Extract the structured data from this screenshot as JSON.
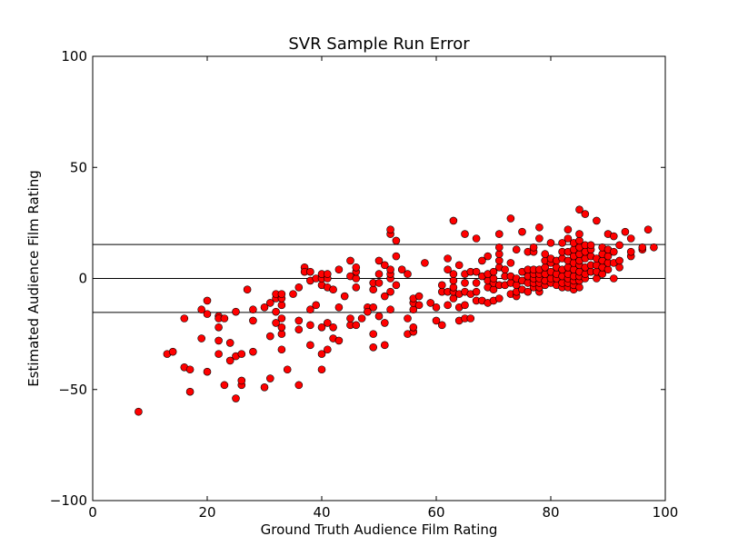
{
  "chart_data": {
    "type": "scatter",
    "title": "SVR Sample Run Error",
    "xlabel": "Ground Truth Audience Film Rating",
    "ylabel": "Estimated Audience Film Rating",
    "xlim": [
      0,
      100
    ],
    "ylim": [
      -100,
      100
    ],
    "xticks": [
      0,
      20,
      40,
      60,
      80,
      100
    ],
    "yticks": [
      -100,
      -50,
      0,
      50,
      100
    ],
    "grid": false,
    "legend": "none",
    "marker_color": "#ff0000",
    "marker_edge_color": "#000000",
    "hlines": [
      15.3,
      0,
      -15.3
    ],
    "points": [
      [
        8,
        -60
      ],
      [
        13,
        -34
      ],
      [
        14,
        -33
      ],
      [
        16,
        -40
      ],
      [
        16,
        -18
      ],
      [
        17,
        -51
      ],
      [
        17,
        -41
      ],
      [
        19,
        -27
      ],
      [
        19,
        -14
      ],
      [
        20,
        -42
      ],
      [
        20,
        -16
      ],
      [
        20,
        -10
      ],
      [
        22,
        -34
      ],
      [
        22,
        -28
      ],
      [
        22,
        -22
      ],
      [
        22,
        -17
      ],
      [
        22,
        -18
      ],
      [
        23,
        -48
      ],
      [
        23,
        -18
      ],
      [
        24,
        -37
      ],
      [
        24,
        -29
      ],
      [
        25,
        -54
      ],
      [
        25,
        -35
      ],
      [
        25,
        -15
      ],
      [
        26,
        -48
      ],
      [
        26,
        -46
      ],
      [
        26,
        -34
      ],
      [
        27,
        -5
      ],
      [
        28,
        -33
      ],
      [
        28,
        -19
      ],
      [
        28,
        -14
      ],
      [
        30,
        -49
      ],
      [
        30,
        -13
      ],
      [
        31,
        -45
      ],
      [
        31,
        -26
      ],
      [
        31,
        -11
      ],
      [
        32,
        -20
      ],
      [
        32,
        -15
      ],
      [
        32,
        -9
      ],
      [
        32,
        -7
      ],
      [
        33,
        -32
      ],
      [
        33,
        -25
      ],
      [
        33,
        -22
      ],
      [
        33,
        -18
      ],
      [
        33,
        -12
      ],
      [
        33,
        -9
      ],
      [
        33,
        -7
      ],
      [
        34,
        -41
      ],
      [
        35,
        -7
      ],
      [
        36,
        -48
      ],
      [
        36,
        -23
      ],
      [
        36,
        -19
      ],
      [
        36,
        -4
      ],
      [
        37,
        5
      ],
      [
        37,
        3
      ],
      [
        38,
        -30
      ],
      [
        38,
        -21
      ],
      [
        38,
        -14
      ],
      [
        38,
        -1
      ],
      [
        38,
        3
      ],
      [
        39,
        -12
      ],
      [
        39,
        0
      ],
      [
        40,
        -41
      ],
      [
        40,
        -34
      ],
      [
        40,
        -22
      ],
      [
        40,
        -3
      ],
      [
        40,
        0
      ],
      [
        40,
        2
      ],
      [
        41,
        -32
      ],
      [
        41,
        -20
      ],
      [
        41,
        -4
      ],
      [
        41,
        0
      ],
      [
        41,
        2
      ],
      [
        42,
        -27
      ],
      [
        42,
        -22
      ],
      [
        42,
        -5
      ],
      [
        43,
        -28
      ],
      [
        43,
        -13
      ],
      [
        43,
        4
      ],
      [
        44,
        -8
      ],
      [
        45,
        -21
      ],
      [
        45,
        -18
      ],
      [
        45,
        1
      ],
      [
        45,
        8
      ],
      [
        46,
        -21
      ],
      [
        46,
        -4
      ],
      [
        46,
        0
      ],
      [
        46,
        3
      ],
      [
        46,
        5
      ],
      [
        47,
        -18
      ],
      [
        48,
        -13
      ],
      [
        48,
        -15
      ],
      [
        49,
        -31
      ],
      [
        49,
        -25
      ],
      [
        49,
        -13
      ],
      [
        49,
        -5
      ],
      [
        49,
        -2
      ],
      [
        50,
        -17
      ],
      [
        50,
        -2
      ],
      [
        50,
        2
      ],
      [
        50,
        8
      ],
      [
        51,
        -30
      ],
      [
        51,
        -20
      ],
      [
        51,
        -8
      ],
      [
        51,
        6
      ],
      [
        52,
        -14
      ],
      [
        52,
        -6
      ],
      [
        52,
        0
      ],
      [
        52,
        2
      ],
      [
        52,
        4
      ],
      [
        52,
        20
      ],
      [
        52,
        22
      ],
      [
        53,
        -3
      ],
      [
        53,
        10
      ],
      [
        53,
        17
      ],
      [
        54,
        4
      ],
      [
        55,
        -25
      ],
      [
        55,
        -18
      ],
      [
        55,
        2
      ],
      [
        56,
        -24
      ],
      [
        56,
        -22
      ],
      [
        56,
        -14
      ],
      [
        56,
        -11
      ],
      [
        56,
        -9
      ],
      [
        57,
        -12
      ],
      [
        57,
        -8
      ],
      [
        58,
        7
      ],
      [
        59,
        -11
      ],
      [
        60,
        -13
      ],
      [
        60,
        -19
      ],
      [
        61,
        -21
      ],
      [
        61,
        -6
      ],
      [
        61,
        -3
      ],
      [
        62,
        -12
      ],
      [
        62,
        -6
      ],
      [
        62,
        4
      ],
      [
        62,
        9
      ],
      [
        63,
        -9
      ],
      [
        63,
        -6
      ],
      [
        63,
        -4
      ],
      [
        63,
        -1
      ],
      [
        63,
        2
      ],
      [
        63,
        26
      ],
      [
        64,
        -19
      ],
      [
        64,
        -13
      ],
      [
        64,
        -7
      ],
      [
        64,
        6
      ],
      [
        65,
        -18
      ],
      [
        65,
        -12
      ],
      [
        65,
        -6
      ],
      [
        65,
        -2
      ],
      [
        65,
        2
      ],
      [
        65,
        20
      ],
      [
        66,
        -18
      ],
      [
        66,
        -7
      ],
      [
        66,
        3
      ],
      [
        67,
        -10
      ],
      [
        67,
        -6
      ],
      [
        67,
        -2
      ],
      [
        67,
        3
      ],
      [
        67,
        18
      ],
      [
        68,
        -10
      ],
      [
        68,
        1
      ],
      [
        68,
        8
      ],
      [
        69,
        -11
      ],
      [
        69,
        -4
      ],
      [
        69,
        -1
      ],
      [
        69,
        2
      ],
      [
        69,
        10
      ],
      [
        70,
        -10
      ],
      [
        70,
        -5
      ],
      [
        70,
        -2
      ],
      [
        70,
        0
      ],
      [
        70,
        3
      ],
      [
        71,
        -9
      ],
      [
        71,
        -3
      ],
      [
        71,
        5
      ],
      [
        71,
        8
      ],
      [
        71,
        11
      ],
      [
        71,
        14
      ],
      [
        71,
        20
      ],
      [
        72,
        -3
      ],
      [
        72,
        1
      ],
      [
        72,
        4
      ],
      [
        73,
        -7
      ],
      [
        73,
        -2
      ],
      [
        73,
        1
      ],
      [
        73,
        7
      ],
      [
        73,
        27
      ],
      [
        74,
        -8
      ],
      [
        74,
        -6
      ],
      [
        74,
        -3
      ],
      [
        74,
        0
      ],
      [
        74,
        13
      ],
      [
        75,
        -5
      ],
      [
        75,
        -1
      ],
      [
        75,
        3
      ],
      [
        75,
        21
      ],
      [
        76,
        -6
      ],
      [
        76,
        -2
      ],
      [
        76,
        1
      ],
      [
        76,
        4
      ],
      [
        76,
        12
      ],
      [
        77,
        -4
      ],
      [
        77,
        -2
      ],
      [
        77,
        0
      ],
      [
        77,
        2
      ],
      [
        77,
        4
      ],
      [
        77,
        12
      ],
      [
        77,
        14
      ],
      [
        78,
        -6
      ],
      [
        78,
        -4
      ],
      [
        78,
        -2
      ],
      [
        78,
        0
      ],
      [
        78,
        2
      ],
      [
        78,
        4
      ],
      [
        78,
        18
      ],
      [
        78,
        23
      ],
      [
        79,
        -3
      ],
      [
        79,
        -1
      ],
      [
        79,
        2
      ],
      [
        79,
        5
      ],
      [
        79,
        8
      ],
      [
        79,
        11
      ],
      [
        80,
        -2
      ],
      [
        80,
        0
      ],
      [
        80,
        3
      ],
      [
        80,
        7
      ],
      [
        80,
        9
      ],
      [
        80,
        16
      ],
      [
        81,
        -3
      ],
      [
        81,
        0
      ],
      [
        81,
        2
      ],
      [
        81,
        5
      ],
      [
        81,
        8
      ],
      [
        82,
        -4
      ],
      [
        82,
        -2
      ],
      [
        82,
        1
      ],
      [
        82,
        4
      ],
      [
        82,
        9
      ],
      [
        82,
        12
      ],
      [
        82,
        16
      ],
      [
        83,
        -4
      ],
      [
        83,
        -2
      ],
      [
        83,
        0
      ],
      [
        83,
        2
      ],
      [
        83,
        5
      ],
      [
        83,
        8
      ],
      [
        83,
        12
      ],
      [
        83,
        18
      ],
      [
        83,
        22
      ],
      [
        84,
        -5
      ],
      [
        84,
        -3
      ],
      [
        84,
        -1
      ],
      [
        84,
        1
      ],
      [
        84,
        4
      ],
      [
        84,
        7
      ],
      [
        84,
        10
      ],
      [
        84,
        13
      ],
      [
        84,
        16
      ],
      [
        85,
        -4
      ],
      [
        85,
        -1
      ],
      [
        85,
        1
      ],
      [
        85,
        3
      ],
      [
        85,
        6
      ],
      [
        85,
        8
      ],
      [
        85,
        11
      ],
      [
        85,
        14
      ],
      [
        85,
        17
      ],
      [
        85,
        20
      ],
      [
        85,
        31
      ],
      [
        86,
        0
      ],
      [
        86,
        2
      ],
      [
        86,
        5
      ],
      [
        86,
        9
      ],
      [
        86,
        12
      ],
      [
        86,
        15
      ],
      [
        86,
        29
      ],
      [
        87,
        3
      ],
      [
        87,
        6
      ],
      [
        87,
        10
      ],
      [
        87,
        13
      ],
      [
        87,
        15
      ],
      [
        88,
        0
      ],
      [
        88,
        3
      ],
      [
        88,
        6
      ],
      [
        88,
        9
      ],
      [
        88,
        26
      ],
      [
        89,
        2
      ],
      [
        89,
        5
      ],
      [
        89,
        8
      ],
      [
        89,
        11
      ],
      [
        89,
        14
      ],
      [
        90,
        4
      ],
      [
        90,
        7
      ],
      [
        90,
        10
      ],
      [
        90,
        13
      ],
      [
        90,
        20
      ],
      [
        91,
        0
      ],
      [
        91,
        7
      ],
      [
        91,
        12
      ],
      [
        91,
        19
      ],
      [
        92,
        5
      ],
      [
        92,
        8
      ],
      [
        92,
        15
      ],
      [
        93,
        21
      ],
      [
        94,
        10
      ],
      [
        94,
        12
      ],
      [
        94,
        18
      ],
      [
        96,
        13
      ],
      [
        96,
        14
      ],
      [
        97,
        22
      ],
      [
        98,
        14
      ]
    ]
  }
}
